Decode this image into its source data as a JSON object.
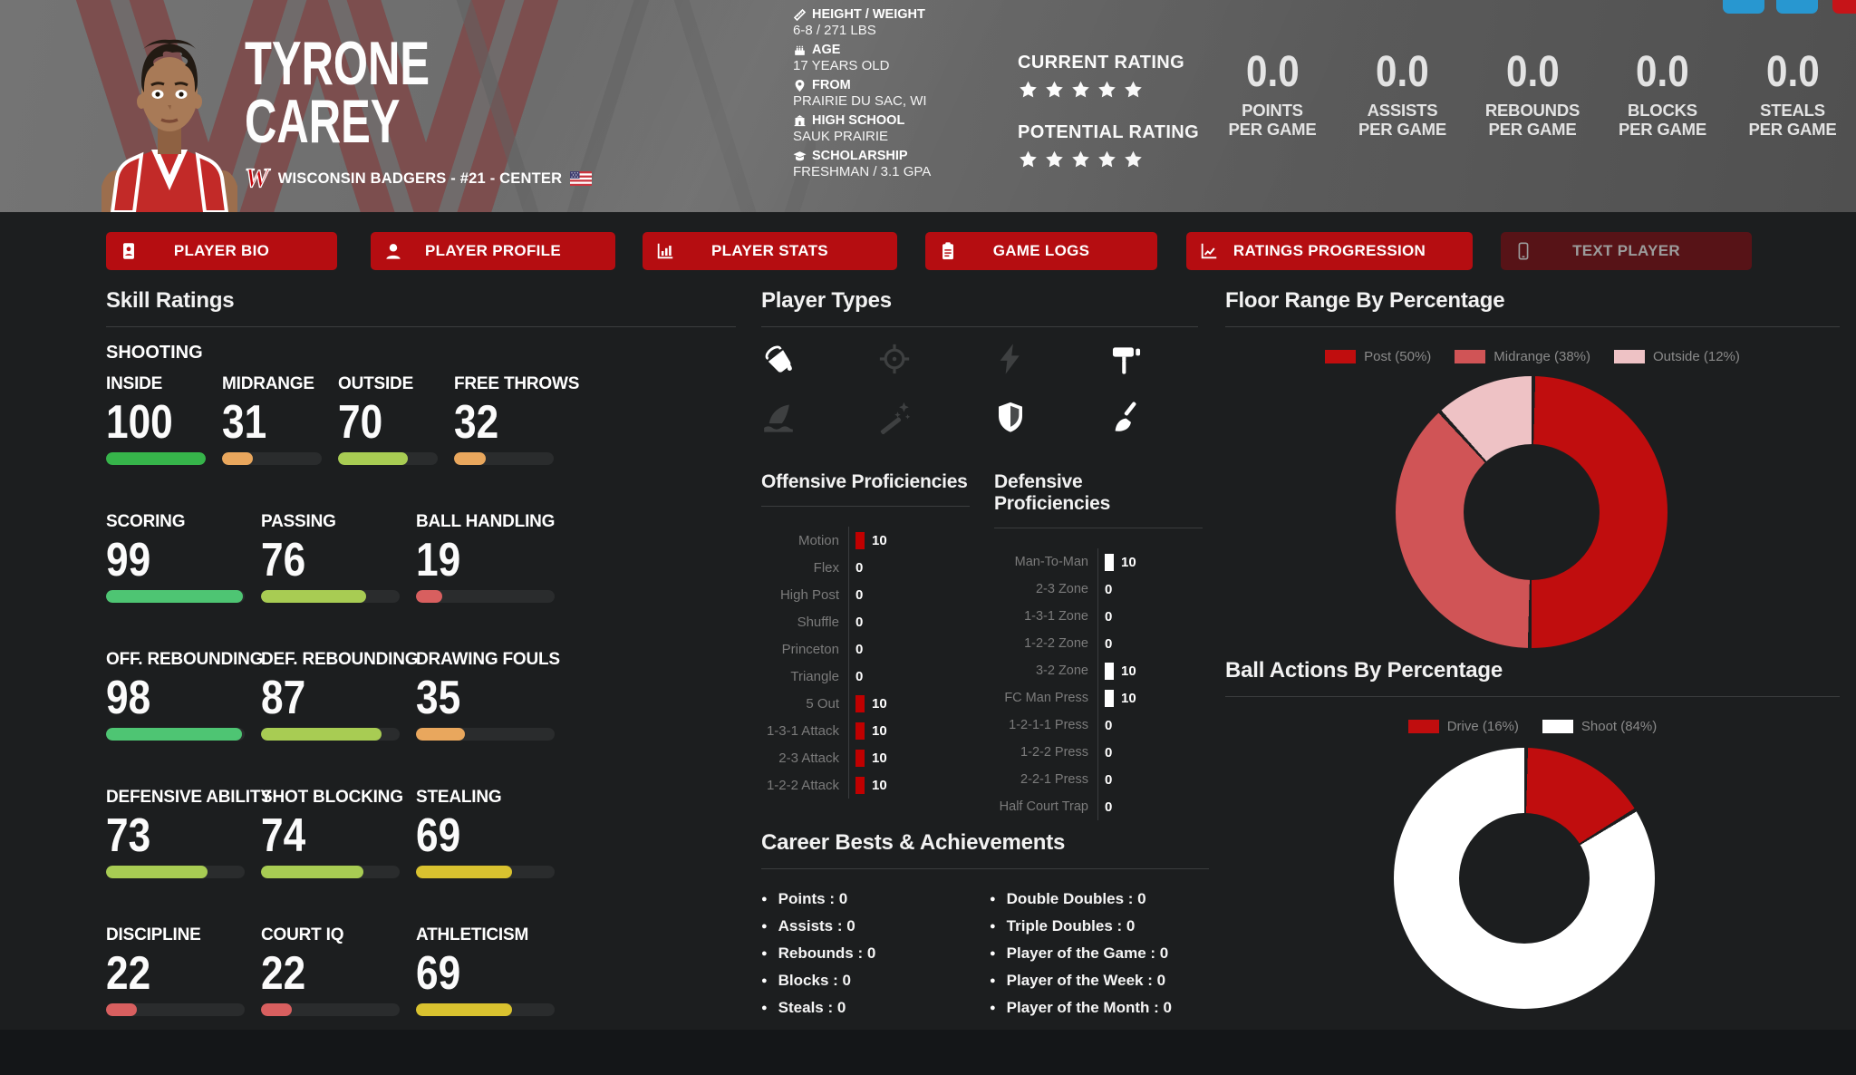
{
  "header": {
    "name_line1": "TYRONE",
    "name_line2": "CAREY",
    "crest_letter": "W",
    "team_line": "WISCONSIN BADGERS - #21 - CENTER",
    "flag_icon": "us-flag-icon",
    "info": [
      {
        "icon": "ruler-icon",
        "label": "HEIGHT / WEIGHT",
        "value": "6-8 / 271 LBS"
      },
      {
        "icon": "cake-icon",
        "label": "AGE",
        "value": "17 YEARS OLD"
      },
      {
        "icon": "map-marker-icon",
        "label": "FROM",
        "value": "PRAIRIE DU SAC, WI"
      },
      {
        "icon": "school-icon",
        "label": "HIGH SCHOOL",
        "value": "SAUK PRAIRIE"
      },
      {
        "icon": "graduation-cap-icon",
        "label": "SCHOLARSHIP",
        "value": "FRESHMAN / 3.1 GPA"
      }
    ],
    "ratings": [
      {
        "label": "CURRENT RATING",
        "stars": 5
      },
      {
        "label": "POTENTIAL RATING",
        "stars": 5
      }
    ],
    "stats": [
      {
        "value": "0.0",
        "label_top": "POINTS",
        "label_bottom": "PER GAME"
      },
      {
        "value": "0.0",
        "label_top": "ASSISTS",
        "label_bottom": "PER GAME"
      },
      {
        "value": "0.0",
        "label_top": "REBOUNDS",
        "label_bottom": "PER GAME"
      },
      {
        "value": "0.0",
        "label_top": "BLOCKS",
        "label_bottom": "PER GAME"
      },
      {
        "value": "0.0",
        "label_top": "STEALS",
        "label_bottom": "PER GAME"
      }
    ],
    "window_buttons": [
      {
        "name": "blue-button-1",
        "color": "#2aa0dd"
      },
      {
        "name": "blue-button-2",
        "color": "#2aa0dd"
      },
      {
        "name": "red-button",
        "color": "#d2151a"
      }
    ]
  },
  "tabs": [
    {
      "icon": "id-card-icon",
      "label": "PLAYER BIO",
      "enabled": true
    },
    {
      "icon": "user-icon",
      "label": "PLAYER PROFILE",
      "enabled": true
    },
    {
      "icon": "bar-chart-icon",
      "label": "PLAYER STATS",
      "enabled": true
    },
    {
      "icon": "clipboard-icon",
      "label": "GAME LOGS",
      "enabled": true
    },
    {
      "icon": "line-chart-icon",
      "label": "RATINGS PROGRESSION",
      "enabled": true
    },
    {
      "icon": "smartphone-icon",
      "label": "TEXT PLAYER",
      "enabled": false
    }
  ],
  "skill_ratings": {
    "title": "Skill Ratings",
    "rows": [
      {
        "group": "SHOOTING",
        "items": [
          {
            "label": "INSIDE",
            "value": 100,
            "color": "#36b44a"
          },
          {
            "label": "MIDRANGE",
            "value": 31,
            "color": "#e9a75d"
          },
          {
            "label": "OUTSIDE",
            "value": 70,
            "color": "#a8cc53"
          },
          {
            "label": "FREE THROWS",
            "value": 32,
            "color": "#e9a75d"
          }
        ]
      },
      {
        "items": [
          {
            "label": "SCORING",
            "value": 99,
            "color": "#4ec573"
          },
          {
            "label": "PASSING",
            "value": 76,
            "color": "#a8cc53"
          },
          {
            "label": "BALL HANDLING",
            "value": 19,
            "color": "#d85f5f"
          }
        ]
      },
      {
        "items": [
          {
            "label": "OFF. REBOUNDING",
            "value": 98,
            "color": "#4ec573"
          },
          {
            "label": "DEF. REBOUNDING",
            "value": 87,
            "color": "#a8cc53"
          },
          {
            "label": "DRAWING FOULS",
            "value": 35,
            "color": "#e9a75d"
          }
        ]
      },
      {
        "items": [
          {
            "label": "DEFENSIVE ABILITY",
            "value": 73,
            "color": "#a8cc53"
          },
          {
            "label": "SHOT BLOCKING",
            "value": 74,
            "color": "#a8cc53"
          },
          {
            "label": "STEALING",
            "value": 69,
            "color": "#d9c22f"
          }
        ]
      },
      {
        "items": [
          {
            "label": "DISCIPLINE",
            "value": 22,
            "color": "#d85f5f"
          },
          {
            "label": "COURT IQ",
            "value": 22,
            "color": "#d85f5f"
          },
          {
            "label": "ATHLETICISM",
            "value": 69,
            "color": "#d9c22f"
          }
        ]
      }
    ]
  },
  "player_types": {
    "title": "Player Types",
    "icons": [
      {
        "name": "bucket-icon",
        "active": true
      },
      {
        "name": "crosshair-icon",
        "active": false
      },
      {
        "name": "lightning-icon",
        "active": false
      },
      {
        "name": "paint-roller-icon",
        "active": true
      },
      {
        "name": "shark-fin-icon",
        "active": false
      },
      {
        "name": "magic-wand-icon",
        "active": false
      },
      {
        "name": "shield-icon",
        "active": true
      },
      {
        "name": "broom-icon",
        "active": true
      }
    ]
  },
  "offensive_proficiencies": {
    "title": "Offensive Proficiencies",
    "bar_color": "#c00000",
    "items": [
      {
        "label": "Motion",
        "value": 10
      },
      {
        "label": "Flex",
        "value": 0
      },
      {
        "label": "High Post",
        "value": 0
      },
      {
        "label": "Shuffle",
        "value": 0
      },
      {
        "label": "Princeton",
        "value": 0
      },
      {
        "label": "Triangle",
        "value": 0
      },
      {
        "label": "5 Out",
        "value": 10
      },
      {
        "label": "1-3-1 Attack",
        "value": 10
      },
      {
        "label": "2-3 Attack",
        "value": 10
      },
      {
        "label": "1-2-2 Attack",
        "value": 10
      }
    ]
  },
  "defensive_proficiencies": {
    "title": "Defensive Proficiencies",
    "bar_color": "#ffffff",
    "items": [
      {
        "label": "Man-To-Man",
        "value": 10
      },
      {
        "label": "2-3 Zone",
        "value": 0
      },
      {
        "label": "1-3-1 Zone",
        "value": 0
      },
      {
        "label": "1-2-2 Zone",
        "value": 0
      },
      {
        "label": "3-2 Zone",
        "value": 10
      },
      {
        "label": "FC Man Press",
        "value": 10
      },
      {
        "label": "1-2-1-1 Press",
        "value": 0
      },
      {
        "label": "1-2-2 Press",
        "value": 0
      },
      {
        "label": "2-2-1 Press",
        "value": 0
      },
      {
        "label": "Half Court Trap",
        "value": 0
      }
    ]
  },
  "career": {
    "title": "Career Bests & Achievements",
    "left": [
      {
        "label": "Points",
        "value": 0
      },
      {
        "label": "Assists",
        "value": 0
      },
      {
        "label": "Rebounds",
        "value": 0
      },
      {
        "label": "Blocks",
        "value": 0
      },
      {
        "label": "Steals",
        "value": 0
      }
    ],
    "right": [
      {
        "label": "Double Doubles",
        "value": 0
      },
      {
        "label": "Triple Doubles",
        "value": 0
      },
      {
        "label": "Player of the Game",
        "value": 0
      },
      {
        "label": "Player of the Week",
        "value": 0
      },
      {
        "label": "Player of the Month",
        "value": 0
      }
    ]
  },
  "chart_data": [
    {
      "type": "pie",
      "donut": true,
      "title": "Floor Range By Percentage",
      "labels": [
        "Post",
        "Midrange",
        "Outside"
      ],
      "values": [
        50,
        38,
        12
      ],
      "colors": [
        "#c00d0e",
        "#d05456",
        "#eec2c5"
      ],
      "legend_position": "top"
    },
    {
      "type": "pie",
      "donut": true,
      "title": "Ball Actions By Percentage",
      "labels": [
        "Drive",
        "Shoot"
      ],
      "values": [
        16,
        84
      ],
      "colors": [
        "#c00d0e",
        "#ffffff"
      ],
      "legend_position": "top"
    }
  ]
}
